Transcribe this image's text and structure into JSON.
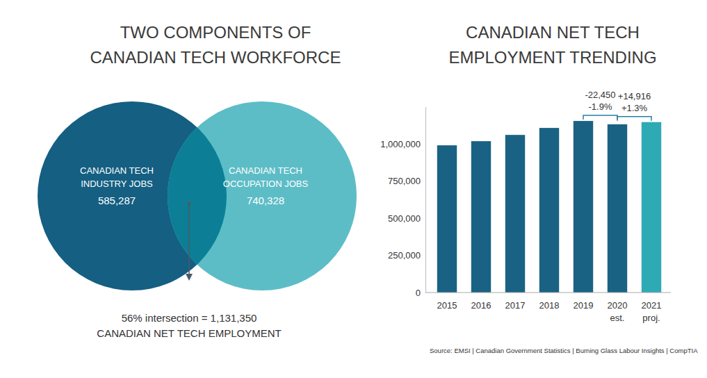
{
  "chart_data": [
    {
      "type": "venn",
      "title": [
        "TWO COMPONENTS OF",
        "CANADIAN TECH WORKFORCE"
      ],
      "categories": [
        [
          "CANADIAN TECH",
          "INDUSTRY JOBS"
        ],
        [
          "CANADIAN TECH",
          "OCCUPATION JOBS"
        ]
      ],
      "values": [
        585287,
        740328
      ],
      "value_labels": [
        "585,287",
        "740,328"
      ],
      "colors": [
        "#155f82",
        "#5dbdc6"
      ],
      "intersection": {
        "color": "#0c7f96",
        "label": [
          "56% intersection = 1,131,350",
          "CANADIAN NET TECH EMPLOYMENT"
        ]
      }
    },
    {
      "type": "bar",
      "title": [
        "CANADIAN NET TECH",
        "EMPLOYMENT TRENDING"
      ],
      "categories": [
        "2015",
        "2016",
        "2017",
        "2018",
        "2019",
        "2020 est.",
        "2021 proj."
      ],
      "values": [
        990000,
        1018000,
        1060000,
        1107000,
        1153800,
        1131350,
        1146266
      ],
      "colors": [
        "#1a6283",
        "#1a6283",
        "#1a6283",
        "#1a6283",
        "#1a6283",
        "#1a6283",
        "#2eaab5"
      ],
      "ylim": [
        0,
        1250000
      ],
      "yticks": [
        0,
        {
          "value": 250000,
          "label": "250,000"
        },
        {
          "value": 500000,
          "label": "500,000"
        },
        {
          "value": 750000,
          "label": "750,000"
        },
        {
          "value": 1000000,
          "label": "1,000,000"
        }
      ],
      "grid": false,
      "annotations": [
        {
          "text": [
            "-22,450",
            "-1.9%"
          ],
          "between": [
            "2019",
            "2020 est."
          ]
        },
        {
          "text": [
            "+14,916",
            "+1.3%"
          ],
          "between": [
            "2020 est.",
            "2021 proj."
          ]
        }
      ],
      "source": "Source: EMSI | Canadian Government Statistics | Burning Glass Labour Insights | CompTIA"
    }
  ]
}
